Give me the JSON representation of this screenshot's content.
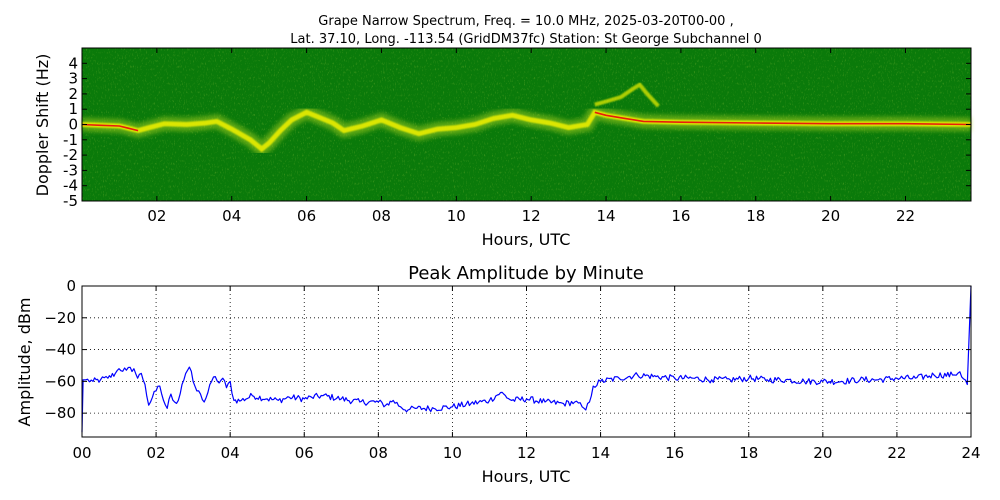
{
  "chart_data": [
    {
      "type": "heatmap",
      "title_line1": "Grape Narrow Spectrum, Freq. = 10.0 MHz, 2025-03-20T00-00 ,",
      "title_line2": "Lat.  37.10, Long. -113.54 (GridDM37fc) Station: St George Subchannel 0",
      "xlabel": "Hours, UTC",
      "ylabel": "Doppler Shift (Hz)",
      "xlim": [
        0,
        23.75
      ],
      "ylim": [
        -5,
        5
      ],
      "x_ticks": [
        2,
        4,
        6,
        8,
        10,
        12,
        14,
        16,
        18,
        20,
        22
      ],
      "x_tick_labels": [
        "02",
        "04",
        "06",
        "08",
        "10",
        "12",
        "14",
        "16",
        "18",
        "20",
        "22"
      ],
      "y_ticks": [
        4,
        3,
        2,
        1,
        0,
        -1,
        -2,
        -3,
        -4,
        -5
      ],
      "y_tick_labels": [
        "4",
        "3",
        "2",
        "1",
        "0",
        "-1",
        "-2",
        "-3",
        "-4",
        "-5"
      ],
      "colors": {
        "background": "#0a7a0a",
        "mid": "#9ecb1a",
        "high": "#f2f200",
        "peak": "#e81d0c"
      },
      "trace_hz": [
        [
          0.0,
          0.0
        ],
        [
          0.5,
          -0.05
        ],
        [
          1.0,
          -0.1
        ],
        [
          1.5,
          -0.4
        ],
        [
          1.8,
          -0.2
        ],
        [
          2.2,
          0.05
        ],
        [
          2.8,
          0.0
        ],
        [
          3.3,
          0.1
        ],
        [
          3.6,
          0.2
        ],
        [
          4.0,
          -0.3
        ],
        [
          4.5,
          -1.0
        ],
        [
          4.8,
          -1.6
        ],
        [
          5.0,
          -1.2
        ],
        [
          5.3,
          -0.4
        ],
        [
          5.6,
          0.3
        ],
        [
          6.0,
          0.8
        ],
        [
          6.3,
          0.5
        ],
        [
          6.7,
          0.1
        ],
        [
          7.0,
          -0.4
        ],
        [
          7.5,
          -0.1
        ],
        [
          8.0,
          0.3
        ],
        [
          8.5,
          -0.2
        ],
        [
          9.0,
          -0.6
        ],
        [
          9.5,
          -0.3
        ],
        [
          10.0,
          -0.2
        ],
        [
          10.5,
          0.0
        ],
        [
          11.0,
          0.4
        ],
        [
          11.5,
          0.6
        ],
        [
          12.0,
          0.3
        ],
        [
          12.5,
          0.1
        ],
        [
          13.0,
          -0.2
        ],
        [
          13.5,
          0.0
        ],
        [
          13.7,
          0.8
        ],
        [
          14.0,
          0.6
        ],
        [
          14.5,
          0.4
        ],
        [
          15.0,
          0.2
        ],
        [
          16.0,
          0.15
        ],
        [
          18.0,
          0.1
        ],
        [
          20.0,
          0.05
        ],
        [
          22.0,
          0.05
        ],
        [
          23.75,
          0.0
        ]
      ],
      "trace_hz_secondary": [
        [
          13.7,
          1.3
        ],
        [
          14.0,
          1.5
        ],
        [
          14.4,
          1.8
        ],
        [
          14.7,
          2.3
        ],
        [
          14.9,
          2.6
        ],
        [
          15.1,
          2.0
        ],
        [
          15.4,
          1.2
        ]
      ]
    },
    {
      "type": "line",
      "title": "Peak Amplitude by Minute",
      "xlabel": "Hours, UTC",
      "ylabel": "Amplitude, dBm",
      "xlim": [
        0,
        24
      ],
      "ylim": [
        -95,
        0
      ],
      "grid": true,
      "x_ticks": [
        0,
        2,
        4,
        6,
        8,
        10,
        12,
        14,
        16,
        18,
        20,
        22,
        24
      ],
      "x_tick_labels": [
        "00",
        "02",
        "04",
        "06",
        "08",
        "10",
        "12",
        "14",
        "16",
        "18",
        "20",
        "22",
        "24"
      ],
      "y_ticks": [
        0,
        -20,
        -40,
        -60,
        -80
      ],
      "y_tick_labels": [
        "0",
        "−20",
        "−40",
        "−60",
        "−80"
      ],
      "line_color": "#0000ff",
      "series": [
        {
          "x": [
            0.0,
            0.03,
            0.1,
            0.3,
            0.5,
            0.7,
            0.9,
            1.0,
            1.2,
            1.4,
            1.5,
            1.6,
            1.7,
            1.8,
            1.9,
            2.0,
            2.1,
            2.2,
            2.3,
            2.4,
            2.5,
            2.6,
            2.7,
            2.8,
            2.9,
            3.0,
            3.1,
            3.2,
            3.3,
            3.4,
            3.5,
            3.6,
            3.7,
            3.8,
            3.9,
            4.0,
            4.1,
            4.3,
            4.6,
            5.0,
            5.3,
            5.6,
            6.0,
            6.2,
            6.5,
            7.0,
            7.5,
            8.0,
            8.2,
            8.4,
            8.6,
            8.8,
            9.0,
            9.5,
            10.0,
            10.5,
            11.0,
            11.3,
            11.6,
            12.0,
            12.5,
            13.0,
            13.3,
            13.5,
            13.6,
            13.7,
            13.8,
            14.0,
            14.5,
            15.0,
            15.5,
            16.0,
            16.5,
            17.0,
            17.5,
            18.0,
            18.5,
            19.0,
            19.5,
            20.0,
            20.5,
            21.0,
            21.5,
            22.0,
            22.5,
            23.0,
            23.5,
            23.7,
            23.9,
            24.0
          ],
          "y": [
            -92,
            -59,
            -59,
            -60,
            -59,
            -58,
            -55,
            -52,
            -53,
            -52,
            -58,
            -55,
            -62,
            -75,
            -70,
            -66,
            -63,
            -72,
            -77,
            -68,
            -73,
            -72,
            -62,
            -55,
            -51,
            -60,
            -66,
            -68,
            -73,
            -67,
            -60,
            -57,
            -61,
            -58,
            -64,
            -60,
            -72,
            -72,
            -69,
            -71,
            -72,
            -70,
            -71,
            -70,
            -69,
            -71,
            -73,
            -73,
            -75,
            -72,
            -76,
            -78,
            -77,
            -77,
            -76,
            -74,
            -72,
            -67,
            -72,
            -71,
            -73,
            -74,
            -73,
            -76,
            -78,
            -73,
            -63,
            -60,
            -58,
            -56,
            -57,
            -58,
            -58,
            -59,
            -59,
            -58,
            -59,
            -59,
            -60,
            -60,
            -60,
            -59,
            -59,
            -58,
            -58,
            -56,
            -56,
            -54,
            -62,
            0
          ]
        }
      ]
    }
  ]
}
